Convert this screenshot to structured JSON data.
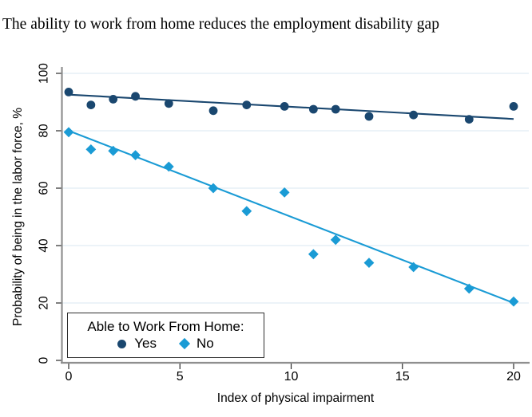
{
  "title": "The ability to work from home reduces the employment disability gap",
  "colors": {
    "yes_series": "#1a476f",
    "no_series": "#1a9bd5",
    "gridline": "#e6eff6",
    "axis_line": "#8f8f8f",
    "tick": "#2a2a2a",
    "text": "#000000"
  },
  "legend": {
    "title": "Able to Work From Home:",
    "items": [
      {
        "label": "Yes",
        "marker": "circle",
        "color": "#1a476f"
      },
      {
        "label": "No",
        "marker": "diamond",
        "color": "#1a9bd5"
      }
    ]
  },
  "chart_data": {
    "type": "scatter",
    "title": "The ability to work from home reduces the employment disability gap",
    "xlabel": "Index of physical impairment",
    "ylabel": "Probability of being in the labor force, %",
    "xlim": [
      0,
      20
    ],
    "ylim": [
      0,
      100
    ],
    "xticks": [
      0,
      5,
      10,
      15,
      20
    ],
    "yticks": [
      0,
      20,
      40,
      60,
      80,
      100
    ],
    "grid": "horizontal gridlines at y ticks, pale blue",
    "legend_position": "inside bottom-left",
    "x": [
      0,
      1,
      2,
      3,
      4.5,
      6.5,
      8,
      9.7,
      11,
      12,
      13.5,
      15.5,
      18,
      20
    ],
    "series": [
      {
        "name": "Yes",
        "marker": "circle",
        "color": "#1a476f",
        "values": [
          93.5,
          89,
          91,
          92,
          89.5,
          87,
          89,
          88.5,
          87.5,
          87.5,
          85,
          85.5,
          84,
          88.5
        ],
        "trend_line": {
          "x0": 0,
          "y0": 92.6,
          "x1": 20,
          "y1": 84.1
        }
      },
      {
        "name": "No",
        "marker": "diamond",
        "color": "#1a9bd5",
        "values": [
          79.5,
          73.5,
          73,
          71.5,
          67.5,
          60,
          52,
          58.5,
          37,
          42,
          34,
          32.5,
          25,
          20.5
        ],
        "trend_line": {
          "x0": 0,
          "y0": 80,
          "x1": 20,
          "y1": 20
        }
      }
    ]
  }
}
